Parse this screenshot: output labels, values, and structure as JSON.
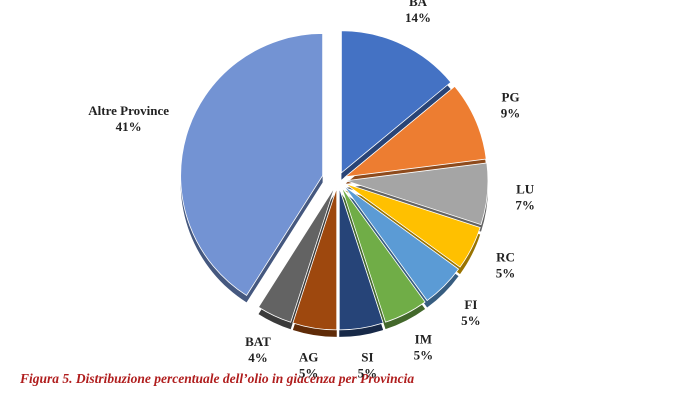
{
  "chart_data": {
    "type": "pie",
    "categories": [
      "BA",
      "PG",
      "LU",
      "RC",
      "FI",
      "IM",
      "SI",
      "AG",
      "BAT",
      "Altre Province"
    ],
    "values": [
      14,
      9,
      7,
      5,
      5,
      5,
      5,
      5,
      4,
      41
    ],
    "value_labels": [
      "14%",
      "9%",
      "7%",
      "5%",
      "5%",
      "5%",
      "5%",
      "5%",
      "4%",
      "41%"
    ],
    "colors": [
      "#4472c4",
      "#ed7d31",
      "#a5a5a5",
      "#ffc000",
      "#5b9bd5",
      "#70ad47",
      "#264478",
      "#9e480e",
      "#636363",
      "#7393d3"
    ],
    "caption": "Figura 5. Distribuzione percentuale dell’olio in giacenza per Provincia"
  }
}
